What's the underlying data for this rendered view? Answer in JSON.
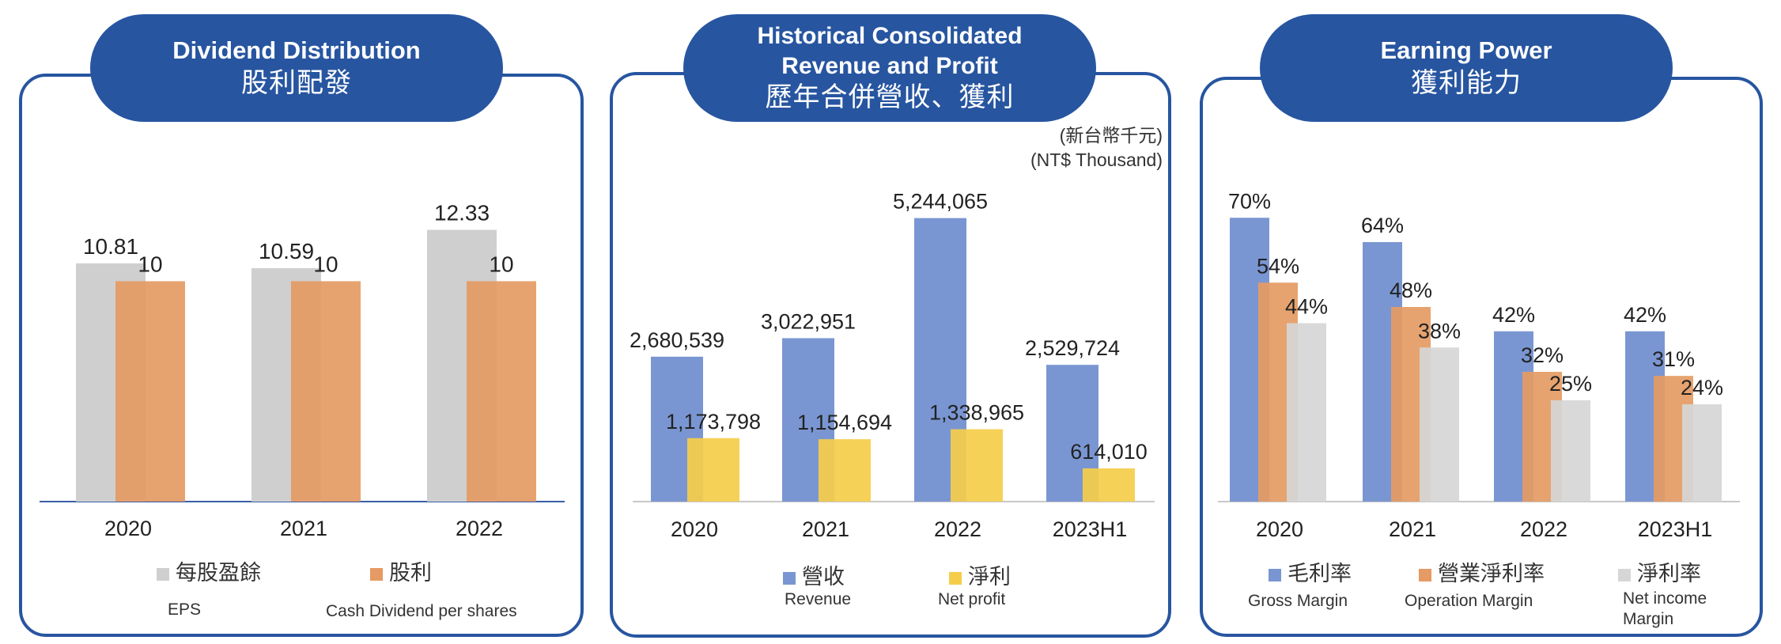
{
  "colors": {
    "frame": "#2755a0",
    "eps": "#cfcfcf",
    "dividend": "#e59b63",
    "revenue": "#7a96d2",
    "net_profit": "#f5cd4a",
    "gross_margin": "#7a96d2",
    "operation_margin": "#e59b63",
    "net_income_margin": "#d6d6d6"
  },
  "panels": {
    "dividend": {
      "title_en": "Dividend Distribution",
      "title_zh": "股利配發"
    },
    "revenue": {
      "title_en_1": "Historical Consolidated",
      "title_en_2": "Revenue and Profit",
      "title_zh": "歷年合併營收、獲利",
      "unit_zh": "(新台幣千元)",
      "unit_en": "(NT$ Thousand)"
    },
    "earning": {
      "title_en": "Earning Power",
      "title_zh": "獲利能力"
    }
  },
  "chart_data": [
    {
      "type": "bar",
      "categories": [
        "2020",
        "2021",
        "2022"
      ],
      "series": [
        {
          "name": "每股盈餘",
          "name_en": "EPS",
          "values": [
            10.81,
            10.59,
            12.33
          ],
          "labels": [
            "10.81",
            "10.59",
            "12.33"
          ],
          "color": "#cfcfcf"
        },
        {
          "name": "股利",
          "name_en": "Cash Dividend per shares",
          "values": [
            10,
            10,
            10
          ],
          "labels": [
            "10",
            "10",
            "10"
          ],
          "color": "#e59b63"
        }
      ],
      "ylim": [
        0,
        14
      ],
      "grid": false,
      "legend": "bottom"
    },
    {
      "type": "bar",
      "categories": [
        "2020",
        "2021",
        "2022",
        "2023H1"
      ],
      "series": [
        {
          "name": "營收",
          "name_en": "Revenue",
          "values": [
            2680539,
            3022951,
            5244065,
            2529724
          ],
          "labels": [
            "2,680,539",
            "3,022,951",
            "5,244,065",
            "2,529,724"
          ],
          "color": "#7a96d2"
        },
        {
          "name": "淨利",
          "name_en": "Net profit",
          "values": [
            1173798,
            1154694,
            1338965,
            614010
          ],
          "labels": [
            "1,173,798",
            "1,154,694",
            "1,338,965",
            "614,010"
          ],
          "color": "#f5cd4a"
        }
      ],
      "ylim": [
        0,
        6000000
      ],
      "grid": false,
      "legend": "bottom"
    },
    {
      "type": "bar",
      "categories": [
        "2020",
        "2021",
        "2022",
        "2023H1"
      ],
      "series": [
        {
          "name": "毛利率",
          "name_en": "Gross Margin",
          "values": [
            70,
            64,
            42,
            42
          ],
          "labels": [
            "70%",
            "64%",
            "42%",
            "42%"
          ],
          "color": "#7a96d2"
        },
        {
          "name": "營業淨利率",
          "name_en": "Operation Margin",
          "values": [
            54,
            48,
            32,
            31
          ],
          "labels": [
            "54%",
            "48%",
            "32%",
            "31%"
          ],
          "color": "#e59b63"
        },
        {
          "name": "淨利率",
          "name_en": "Net income Margin",
          "values": [
            44,
            38,
            25,
            24
          ],
          "labels": [
            "44%",
            "38%",
            "25%",
            "24%"
          ],
          "color": "#d6d6d6"
        }
      ],
      "ylim": [
        0,
        80
      ],
      "grid": false,
      "legend": "bottom"
    }
  ]
}
